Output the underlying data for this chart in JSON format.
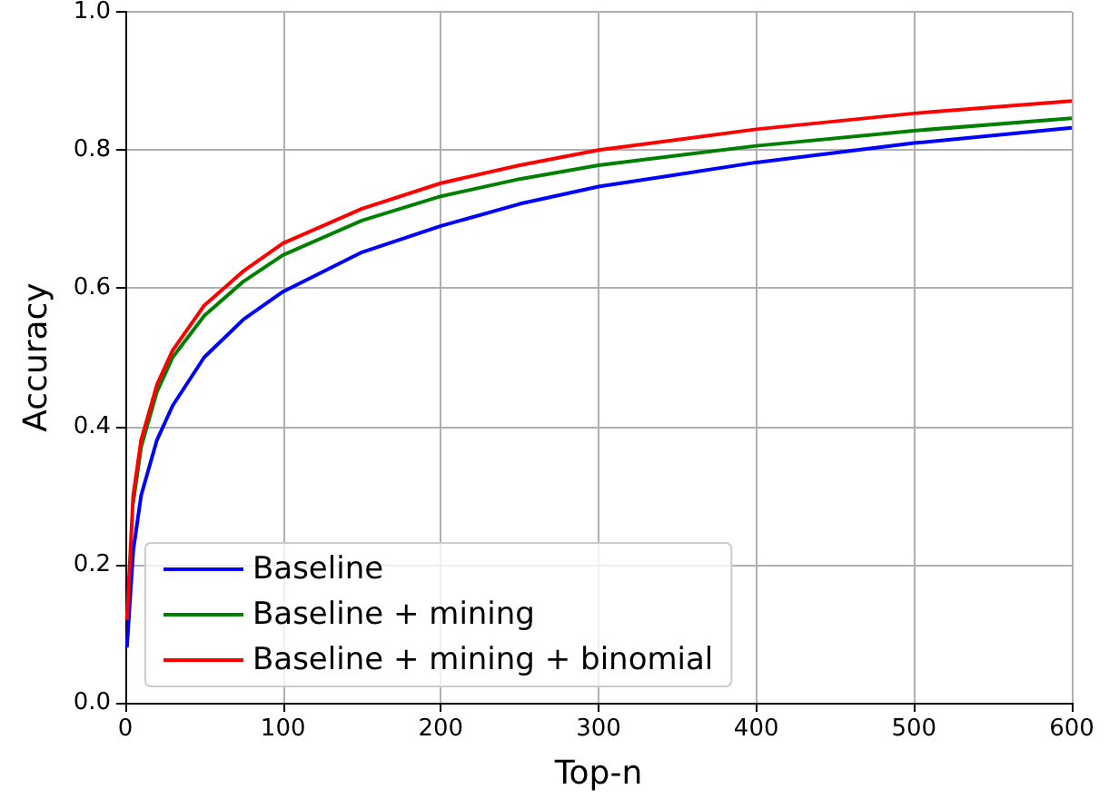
{
  "chart_data": {
    "type": "line",
    "xlabel": "Top-n",
    "ylabel": "Accuracy",
    "x": [
      1,
      5,
      10,
      20,
      30,
      50,
      75,
      100,
      150,
      200,
      250,
      300,
      400,
      500,
      600
    ],
    "series": [
      {
        "name": "Baseline",
        "color": "#0000ff",
        "values": [
          0.08,
          0.22,
          0.3,
          0.38,
          0.43,
          0.5,
          0.555,
          0.595,
          0.652,
          0.69,
          0.722,
          0.747,
          0.782,
          0.81,
          0.832
        ]
      },
      {
        "name": "Baseline + mining",
        "color": "#008000",
        "values": [
          null,
          0.29,
          0.37,
          0.45,
          0.5,
          0.56,
          0.61,
          0.648,
          0.698,
          0.733,
          0.758,
          0.778,
          0.806,
          0.828,
          0.846
        ]
      },
      {
        "name": "Baseline + mining + binomial",
        "color": "#ff0000",
        "values": [
          0.12,
          0.3,
          0.38,
          0.46,
          0.51,
          0.575,
          0.625,
          0.665,
          0.715,
          0.752,
          0.778,
          0.8,
          0.83,
          0.853,
          0.871
        ]
      }
    ],
    "xlim": [
      0,
      600
    ],
    "xticks": [
      0,
      100,
      200,
      300,
      400,
      500,
      600
    ],
    "ylim": [
      0,
      1
    ],
    "yticks": [
      {
        "value": 0,
        "label": "0.0"
      },
      {
        "value": 0.2,
        "label": "0.2"
      },
      {
        "value": 0.4,
        "label": "0.4"
      },
      {
        "value": 0.6,
        "label": "0.6"
      },
      {
        "value": 0.8,
        "label": "0.8"
      },
      {
        "value": 1,
        "label": "1.0"
      }
    ],
    "grid": true,
    "legend": "bottom left",
    "marker": "none",
    "line_style": "solid"
  }
}
